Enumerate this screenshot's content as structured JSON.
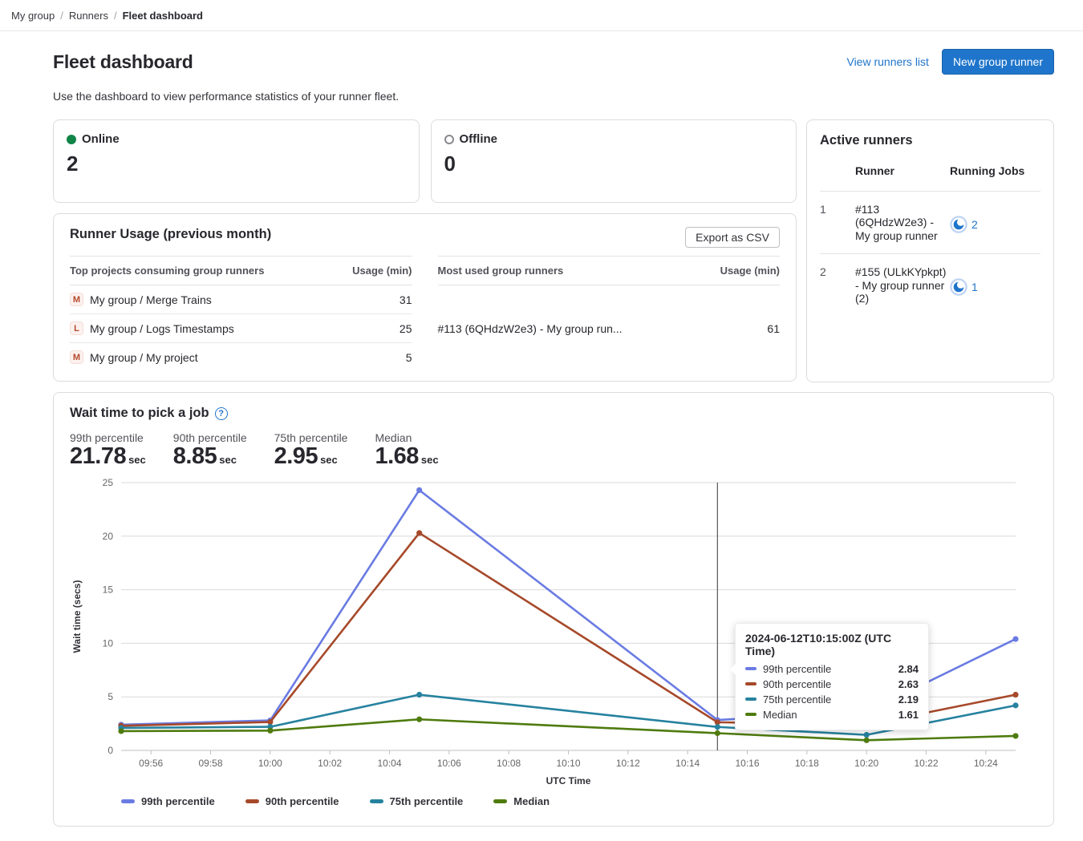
{
  "breadcrumb": {
    "items": [
      "My group",
      "Runners",
      "Fleet dashboard"
    ]
  },
  "header": {
    "title": "Fleet dashboard",
    "view_runners_link": "View runners list",
    "new_runner_button": "New group runner",
    "description": "Use the dashboard to view performance statistics of your runner fleet."
  },
  "status_cards": {
    "online": {
      "label": "Online",
      "count": "2"
    },
    "offline": {
      "label": "Offline",
      "count": "0"
    }
  },
  "active_runners": {
    "title": "Active runners",
    "columns": {
      "runner": "Runner",
      "running_jobs": "Running Jobs"
    },
    "rows": [
      {
        "index": "1",
        "runner": "#113 (6QHdzW2e3) - My group runner",
        "jobs": "2"
      },
      {
        "index": "2",
        "runner": "#155 (ULkKYpkpt) - My group runner (2)",
        "jobs": "1"
      }
    ]
  },
  "runner_usage": {
    "title": "Runner Usage (previous month)",
    "export_button": "Export as CSV",
    "projects_table": {
      "col_name": "Top projects consuming group runners",
      "col_usage": "Usage (min)",
      "rows": [
        {
          "avatar": "M",
          "name": "My group / Merge Trains",
          "usage": "31"
        },
        {
          "avatar": "L",
          "name": "My group / Logs Timestamps",
          "usage": "25"
        },
        {
          "avatar": "M",
          "name": "My group / My project",
          "usage": "5"
        }
      ]
    },
    "runners_table": {
      "col_name": "Most used group runners",
      "col_usage": "Usage (min)",
      "rows": [
        {
          "name": "#113 (6QHdzW2e3) - My group run...",
          "usage": "61"
        }
      ]
    }
  },
  "wait_chart": {
    "title": "Wait time to pick a job",
    "help_icon": "?",
    "stats": [
      {
        "label": "99th percentile",
        "value": "21.78",
        "unit": "sec"
      },
      {
        "label": "90th percentile",
        "value": "8.85",
        "unit": "sec"
      },
      {
        "label": "75th percentile",
        "value": "2.95",
        "unit": "sec"
      },
      {
        "label": "Median",
        "value": "1.68",
        "unit": "sec"
      }
    ],
    "tooltip": {
      "title": "2024-06-12T10:15:00Z (UTC Time)",
      "rows": [
        {
          "label": "99th percentile",
          "value": "2.84"
        },
        {
          "label": "90th percentile",
          "value": "2.63"
        },
        {
          "label": "75th percentile",
          "value": "2.19"
        },
        {
          "label": "Median",
          "value": "1.61"
        }
      ]
    }
  },
  "chart_data": {
    "type": "line",
    "title": "Wait time to pick a job",
    "xlabel": "UTC Time",
    "ylabel": "Wait time (secs)",
    "ylim": [
      0,
      25
    ],
    "yticks": [
      0,
      5,
      10,
      15,
      20,
      25
    ],
    "time_range": [
      "09:55",
      "10:25"
    ],
    "xticks": [
      "09:56",
      "09:58",
      "10:00",
      "10:02",
      "10:04",
      "10:06",
      "10:08",
      "10:10",
      "10:12",
      "10:14",
      "10:16",
      "10:18",
      "10:20",
      "10:22",
      "10:24"
    ],
    "x": [
      "09:55",
      "10:00",
      "10:05",
      "10:15",
      "10:20",
      "10:25"
    ],
    "series": [
      {
        "name": "99th percentile",
        "color": "#6a7be2",
        "values": [
          2.4,
          2.8,
          24.3,
          2.84,
          3.6,
          10.4
        ]
      },
      {
        "name": "90th percentile",
        "color": "#a6492a",
        "values": [
          2.3,
          2.65,
          20.3,
          2.63,
          2.4,
          5.2
        ]
      },
      {
        "name": "75th percentile",
        "color": "#26829f",
        "values": [
          2.1,
          2.2,
          5.2,
          2.19,
          1.45,
          4.2
        ]
      },
      {
        "name": "Median",
        "color": "#4f7b0f",
        "values": [
          1.8,
          1.85,
          2.9,
          1.61,
          0.95,
          1.35
        ]
      }
    ],
    "cursor_time": "10:15",
    "grid": "horizontal",
    "legend_position": "bottom"
  }
}
